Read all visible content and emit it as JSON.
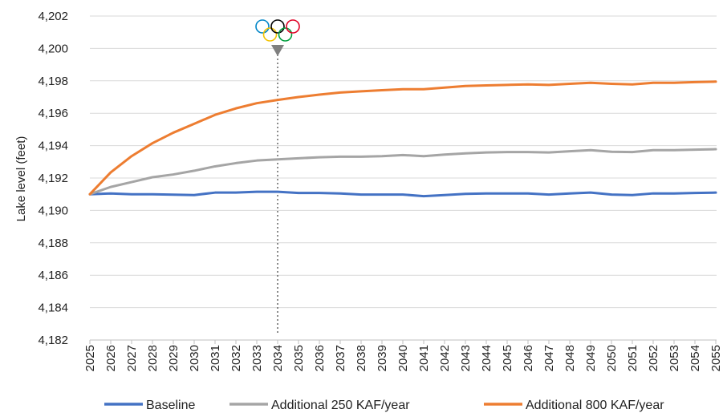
{
  "chart_data": {
    "type": "line",
    "ylabel": "Lake level (feet)",
    "xlabel": "",
    "ylim": [
      4182,
      4202
    ],
    "ytick_step": 2,
    "y_tick_labels": [
      "4,182",
      "4,184",
      "4,186",
      "4,188",
      "4,190",
      "4,192",
      "4,194",
      "4,196",
      "4,198",
      "4,200",
      "4,202"
    ],
    "x": [
      "2025",
      "2026",
      "2027",
      "2028",
      "2029",
      "2030",
      "2031",
      "2032",
      "2033",
      "2034",
      "2035",
      "2036",
      "2037",
      "2038",
      "2039",
      "2040",
      "2041",
      "2042",
      "2043",
      "2044",
      "2045",
      "2046",
      "2047",
      "2048",
      "2049",
      "2050",
      "2051",
      "2052",
      "2053",
      "2054",
      "2055"
    ],
    "grid": "horizontal",
    "legend": "bottom",
    "series": [
      {
        "name": "Baseline",
        "color": "#4472C4",
        "values": [
          4191.0,
          4191.05,
          4191.0,
          4191.0,
          4190.97,
          4190.95,
          4191.1,
          4191.1,
          4191.15,
          4191.15,
          4191.08,
          4191.08,
          4191.05,
          4190.98,
          4190.98,
          4190.98,
          4190.88,
          4190.95,
          4191.02,
          4191.05,
          4191.05,
          4191.05,
          4190.98,
          4191.05,
          4191.1,
          4190.98,
          4190.95,
          4191.05,
          4191.05,
          4191.08,
          4191.1
        ]
      },
      {
        "name": "Additional 250 KAF/year",
        "color": "#A5A5A5",
        "values": [
          4191.0,
          4191.45,
          4191.75,
          4192.05,
          4192.22,
          4192.45,
          4192.72,
          4192.92,
          4193.08,
          4193.15,
          4193.22,
          4193.28,
          4193.32,
          4193.32,
          4193.35,
          4193.42,
          4193.35,
          4193.45,
          4193.52,
          4193.58,
          4193.6,
          4193.6,
          4193.58,
          4193.65,
          4193.72,
          4193.62,
          4193.6,
          4193.72,
          4193.72,
          4193.75,
          4193.78
        ]
      },
      {
        "name": "Additional 800 KAF/year",
        "color": "#ED7D31",
        "values": [
          4191.0,
          4192.35,
          4193.35,
          4194.15,
          4194.8,
          4195.35,
          4195.9,
          4196.3,
          4196.62,
          4196.82,
          4197.0,
          4197.15,
          4197.28,
          4197.35,
          4197.42,
          4197.48,
          4197.48,
          4197.58,
          4197.68,
          4197.72,
          4197.75,
          4197.78,
          4197.75,
          4197.82,
          4197.88,
          4197.82,
          4197.78,
          4197.88,
          4197.88,
          4197.92,
          4197.95
        ]
      }
    ],
    "annotation": {
      "x": "2034",
      "marker": "olympic-rings",
      "line_style": "dotted",
      "line_color": "#666666",
      "ring_colors": [
        "#0085C7",
        "#F4C300",
        "#000000",
        "#009F3D",
        "#DF0024"
      ]
    }
  }
}
